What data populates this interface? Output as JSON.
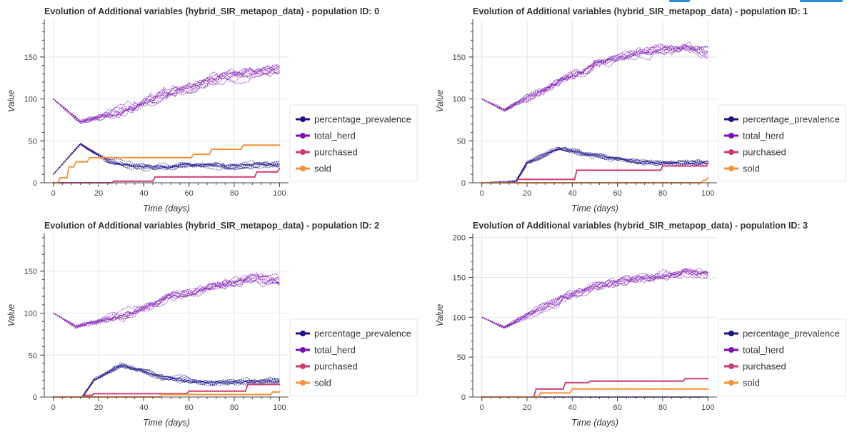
{
  "chart_data": [
    {
      "type": "line",
      "title": "Evolution of Additional variables (hybrid_SIR_metapop_data) - population ID: 0",
      "xlabel": "Time (days)",
      "ylabel": "Value",
      "xlim": [
        -4,
        104
      ],
      "ylim": [
        0,
        195
      ],
      "xticks": [
        0,
        20,
        40,
        60,
        80,
        100
      ],
      "yticks": [
        0,
        50,
        100,
        150
      ],
      "grid": true,
      "legend_position": "right",
      "series": [
        {
          "name": "percentage_prevalence",
          "runs": 10,
          "start": 10,
          "key_x": [
            0,
            12,
            25,
            40,
            60,
            80,
            100
          ],
          "key_y": [
            10,
            48,
            28,
            22,
            26,
            24,
            26
          ],
          "spread": 8
        },
        {
          "name": "total_herd",
          "runs": 10,
          "start": 100,
          "key_x": [
            0,
            12,
            30,
            50,
            70,
            90,
            100
          ],
          "key_y": [
            100,
            75,
            92,
            115,
            130,
            138,
            142
          ],
          "spread": 16
        },
        {
          "name": "purchased",
          "runs": 1,
          "step_points": [
            [
              0,
              0
            ],
            [
              27,
              2
            ],
            [
              45,
              7
            ],
            [
              90,
              13
            ],
            [
              100,
              17
            ]
          ]
        },
        {
          "name": "sold",
          "runs": 1,
          "step_points": [
            [
              0,
              0
            ],
            [
              3,
              6
            ],
            [
              7,
              19
            ],
            [
              10,
              25
            ],
            [
              16,
              30
            ],
            [
              48,
              30
            ],
            [
              62,
              34
            ],
            [
              70,
              40
            ],
            [
              84,
              45
            ],
            [
              100,
              45
            ]
          ]
        }
      ]
    },
    {
      "type": "line",
      "title": "Evolution of Additional variables (hybrid_SIR_metapop_data) - population ID: 1",
      "xlabel": "Time (days)",
      "ylabel": "Value",
      "xlim": [
        -4,
        104
      ],
      "ylim": [
        0,
        195
      ],
      "xticks": [
        0,
        20,
        40,
        60,
        80,
        100
      ],
      "yticks": [
        0,
        50,
        100,
        150
      ],
      "grid": true,
      "legend_position": "right",
      "series": [
        {
          "name": "percentage_prevalence",
          "runs": 10,
          "start": 0,
          "key_x": [
            0,
            15,
            20,
            35,
            50,
            70,
            100
          ],
          "key_y": [
            0,
            0,
            22,
            40,
            30,
            22,
            22
          ],
          "spread": 8
        },
        {
          "name": "total_herd",
          "runs": 10,
          "start": 100,
          "key_x": [
            0,
            10,
            30,
            50,
            70,
            90,
            100
          ],
          "key_y": [
            100,
            85,
            110,
            135,
            150,
            155,
            150
          ],
          "spread": 14
        },
        {
          "name": "purchased",
          "runs": 1,
          "step_points": [
            [
              0,
              0
            ],
            [
              16,
              4
            ],
            [
              42,
              15
            ],
            [
              75,
              15
            ],
            [
              80,
              20
            ],
            [
              100,
              24
            ]
          ]
        },
        {
          "name": "sold",
          "runs": 1,
          "step_points": [
            [
              0,
              0
            ],
            [
              96,
              0
            ],
            [
              98,
              3
            ],
            [
              100,
              6
            ]
          ]
        }
      ]
    },
    {
      "type": "line",
      "title": "Evolution of Additional variables (hybrid_SIR_metapop_data) - population ID: 2",
      "xlabel": "Time (days)",
      "ylabel": "Value",
      "xlim": [
        -4,
        104
      ],
      "ylim": [
        0,
        195
      ],
      "xticks": [
        0,
        20,
        40,
        60,
        80,
        100
      ],
      "yticks": [
        0,
        50,
        100,
        150
      ],
      "grid": true,
      "legend_position": "right",
      "series": [
        {
          "name": "percentage_prevalence",
          "runs": 10,
          "start": 0,
          "key_x": [
            0,
            12,
            18,
            30,
            50,
            70,
            100
          ],
          "key_y": [
            0,
            0,
            25,
            45,
            30,
            24,
            27
          ],
          "spread": 8
        },
        {
          "name": "total_herd",
          "runs": 10,
          "start": 100,
          "key_x": [
            0,
            10,
            30,
            50,
            70,
            90,
            100
          ],
          "key_y": [
            100,
            88,
            108,
            130,
            145,
            155,
            150
          ],
          "spread": 14
        },
        {
          "name": "purchased",
          "runs": 1,
          "step_points": [
            [
              0,
              0
            ],
            [
              14,
              2
            ],
            [
              18,
              4
            ],
            [
              60,
              7
            ],
            [
              86,
              15
            ],
            [
              100,
              15
            ]
          ]
        },
        {
          "name": "sold",
          "runs": 1,
          "step_points": [
            [
              0,
              0
            ],
            [
              45,
              0
            ],
            [
              48,
              3
            ],
            [
              95,
              3
            ],
            [
              97,
              6
            ],
            [
              100,
              6
            ]
          ]
        }
      ]
    },
    {
      "type": "line",
      "title": "Evolution of Additional variables (hybrid_SIR_metapop_data) - population ID: 3",
      "xlabel": "Time (days)",
      "ylabel": "Value",
      "xlim": [
        -4,
        104
      ],
      "ylim": [
        0,
        205
      ],
      "xticks": [
        0,
        20,
        40,
        60,
        80,
        100
      ],
      "yticks": [
        0,
        50,
        100,
        150,
        200
      ],
      "grid": true,
      "legend_position": "right",
      "series": [
        {
          "name": "percentage_prevalence",
          "runs": 10,
          "start": 0,
          "key_x": [
            0,
            50,
            100
          ],
          "key_y": [
            0,
            0,
            0
          ],
          "spread": 0
        },
        {
          "name": "total_herd",
          "runs": 10,
          "start": 100,
          "key_x": [
            0,
            10,
            30,
            50,
            70,
            90,
            100
          ],
          "key_y": [
            100,
            88,
            118,
            140,
            150,
            158,
            155
          ],
          "spread": 14
        },
        {
          "name": "purchased",
          "runs": 1,
          "step_points": [
            [
              0,
              0
            ],
            [
              24,
              10
            ],
            [
              37,
              18
            ],
            [
              48,
              20
            ],
            [
              90,
              23
            ],
            [
              100,
              23
            ]
          ]
        },
        {
          "name": "sold",
          "runs": 1,
          "step_points": [
            [
              0,
              0
            ],
            [
              26,
              5
            ],
            [
              40,
              10
            ],
            [
              100,
              10
            ]
          ]
        }
      ]
    }
  ],
  "colors": {
    "percentage_prevalence": "#1b1385",
    "total_herd": "#7a10b0",
    "purchased": "#cc3a74",
    "sold": "#f7913a",
    "grid": "#e5e5e5",
    "axis": "#444444",
    "legend_border": "#e5e5e5"
  }
}
